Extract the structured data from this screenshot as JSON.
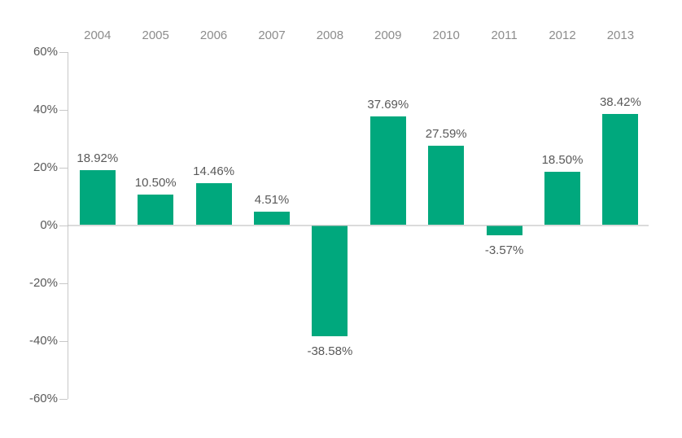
{
  "chart_data": {
    "type": "bar",
    "title": "",
    "xlabel": "",
    "ylabel": "",
    "categories": [
      "2004",
      "2005",
      "2006",
      "2007",
      "2008",
      "2009",
      "2010",
      "2011",
      "2012",
      "2013"
    ],
    "values": [
      18.92,
      10.5,
      14.46,
      4.51,
      -38.58,
      37.69,
      27.59,
      -3.57,
      18.5,
      38.42
    ],
    "value_labels": [
      "18.92%",
      "10.50%",
      "14.46%",
      "4.51%",
      "-38.58%",
      "37.69%",
      "27.59%",
      "-3.57%",
      "18.50%",
      "38.42%"
    ],
    "ylim": [
      -60,
      60
    ],
    "ytick_step": 20,
    "ytick_values": [
      60,
      40,
      20,
      0,
      -20,
      -40,
      -60
    ],
    "ytick_labels": [
      "60%",
      "40%",
      "20%",
      "0%",
      "-20%",
      "-40%",
      "-60%"
    ],
    "category_position": "top",
    "grid": false,
    "legend_position": "none",
    "colors": {
      "bar": "#00a87d",
      "axis": "#c8c8c8",
      "zero_line": "#bebebe",
      "category_label": "#8c8c8c",
      "value_label": "#595959",
      "ytick_label": "#595959",
      "background": "#ffffff"
    }
  }
}
